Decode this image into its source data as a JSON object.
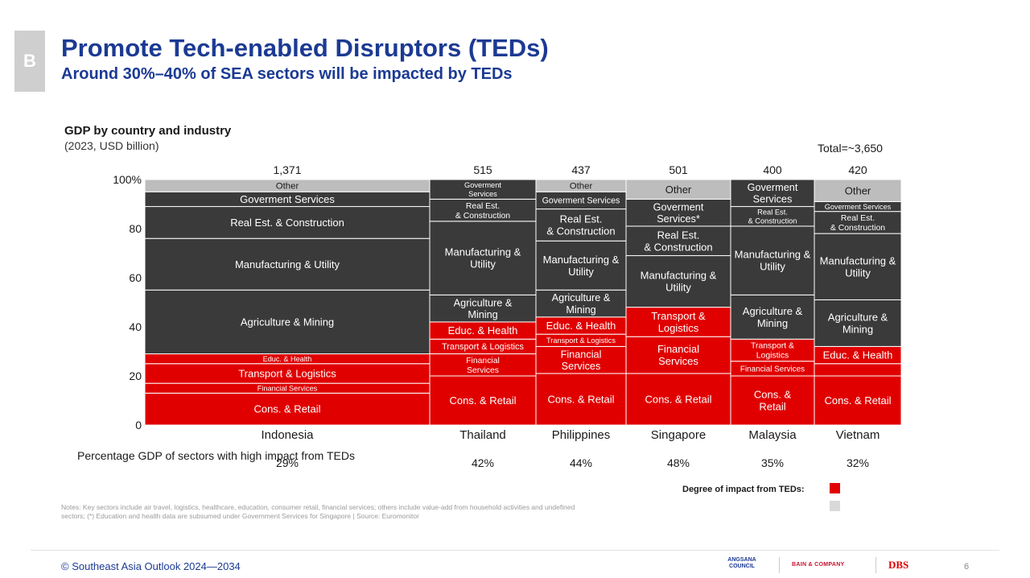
{
  "section": "B",
  "title": "Promote Tech-enabled Disruptors (TEDs)",
  "subtitle": "Around 30%–40% of SEA sectors will be impacted by TEDs",
  "total_label": "Total=~3,650",
  "pct_row_label": "Percentage GDP of sectors with high impact from TEDs",
  "legend": {
    "label": "Degree of impact from TEDs:",
    "high_color": "#e00000",
    "low_color": "#d9d9d9"
  },
  "notes": "Notes: Key sectors include air travel, logistics, healthcare, education, consumer retail, financial services; others include value-add from household activities and undefined sectors; (*) Education and health data are subsumed under Government Services for Singapore | Source: Euromonitor",
  "footer": {
    "copyright": "© Southeast Asia Outlook 2024—2034",
    "page": "6"
  },
  "logos": {
    "angsana": "ANGSANA COUNCIL",
    "bain": "BAIN & COMPANY",
    "dbs": "DBS"
  },
  "chart_data": {
    "type": "bar",
    "title": "GDP by country and industry",
    "subtitle": "(2023, USD billion)",
    "ylim": [
      0,
      100
    ],
    "yticks": [
      "0",
      "20",
      "40",
      "60",
      "80",
      "100%"
    ],
    "colors": {
      "high": "#e00000",
      "low": "#3a3a3a",
      "other": "#bdbdbd"
    },
    "countries": [
      {
        "name": "Indonesia",
        "total": "1,371",
        "pct": "29%",
        "segments": [
          {
            "label": "Cons. & Retail",
            "value": 13,
            "impact": "high"
          },
          {
            "label": "Financial Services",
            "value": 4,
            "impact": "high"
          },
          {
            "label": "Transport & Logistics",
            "value": 8,
            "impact": "high"
          },
          {
            "label": "Educ. & Health",
            "value": 4,
            "impact": "high"
          },
          {
            "label": "Agriculture & Mining",
            "value": 26,
            "impact": "low"
          },
          {
            "label": "Manufacturing & Utility",
            "value": 21,
            "impact": "low"
          },
          {
            "label": "Real Est. & Construction",
            "value": 13,
            "impact": "low"
          },
          {
            "label": "Goverment Services",
            "value": 6,
            "impact": "low"
          },
          {
            "label": "Other",
            "value": 5,
            "impact": "other"
          }
        ]
      },
      {
        "name": "Thailand",
        "total": "515",
        "pct": "42%",
        "segments": [
          {
            "label": "Cons. & Retail",
            "value": 20,
            "impact": "high"
          },
          {
            "label": "Financial Services",
            "value": 9,
            "impact": "high"
          },
          {
            "label": "Transport & Logistics",
            "value": 6,
            "impact": "high"
          },
          {
            "label": "Educ. & Health",
            "value": 7,
            "impact": "high"
          },
          {
            "label": "Agriculture & Mining",
            "value": 11,
            "impact": "low"
          },
          {
            "label": "Manufacturing & Utility",
            "value": 30,
            "impact": "low"
          },
          {
            "label": "Real Est. & Construction",
            "value": 9,
            "impact": "low"
          },
          {
            "label": "Goverment Services",
            "value": 8,
            "impact": "low"
          }
        ]
      },
      {
        "name": "Philippines",
        "total": "437",
        "pct": "44%",
        "segments": [
          {
            "label": "Cons. & Retail",
            "value": 21,
            "impact": "high"
          },
          {
            "label": "Financial Services",
            "value": 11,
            "impact": "high"
          },
          {
            "label": "Transport & Logistics",
            "value": 5,
            "impact": "high"
          },
          {
            "label": "Educ. & Health",
            "value": 7,
            "impact": "high"
          },
          {
            "label": "Agriculture & Mining",
            "value": 11,
            "impact": "low"
          },
          {
            "label": "Manufacturing & Utility",
            "value": 20,
            "impact": "low"
          },
          {
            "label": "Real Est. & Construction",
            "value": 13,
            "impact": "low"
          },
          {
            "label": "Goverment Services",
            "value": 7,
            "impact": "low"
          },
          {
            "label": "Other",
            "value": 5,
            "impact": "other"
          }
        ]
      },
      {
        "name": "Singapore",
        "total": "501",
        "pct": "48%",
        "segments": [
          {
            "label": "Cons. & Retail",
            "value": 21,
            "impact": "high"
          },
          {
            "label": "Financial Services",
            "value": 15,
            "impact": "high"
          },
          {
            "label": "Transport & Logistics",
            "value": 12,
            "impact": "high"
          },
          {
            "label": "Manufacturing & Utility",
            "value": 21,
            "impact": "low"
          },
          {
            "label": "Real Est. & Construction",
            "value": 12,
            "impact": "low"
          },
          {
            "label": "Goverment Services*",
            "value": 11,
            "impact": "low"
          },
          {
            "label": "Other",
            "value": 8,
            "impact": "other"
          }
        ]
      },
      {
        "name": "Malaysia",
        "total": "400",
        "pct": "35%",
        "segments": [
          {
            "label": "Cons. & Retail",
            "value": 20,
            "impact": "high"
          },
          {
            "label": "Financial Services",
            "value": 6,
            "impact": "high"
          },
          {
            "label": "Transport & Logistics",
            "value": 9,
            "impact": "high"
          },
          {
            "label": "Agriculture & Mining",
            "value": 18,
            "impact": "low"
          },
          {
            "label": "Manufacturing & Utility",
            "value": 28,
            "impact": "low"
          },
          {
            "label": "Real Est. & Construction",
            "value": 8,
            "impact": "low"
          },
          {
            "label": "Goverment Services",
            "value": 11,
            "impact": "low"
          }
        ]
      },
      {
        "name": "Vietnam",
        "total": "420",
        "pct": "32%",
        "segments": [
          {
            "label": "Cons. & Retail",
            "value": 20,
            "impact": "high"
          },
          {
            "label": "",
            "value": 5,
            "impact": "high"
          },
          {
            "label": "Educ. & Health",
            "value": 7,
            "impact": "high"
          },
          {
            "label": "Agriculture & Mining",
            "value": 19,
            "impact": "low"
          },
          {
            "label": "Manufacturing & Utility",
            "value": 27,
            "impact": "low"
          },
          {
            "label": "Real Est. & Construction",
            "value": 9,
            "impact": "low"
          },
          {
            "label": "Goverment Services",
            "value": 4,
            "impact": "low"
          },
          {
            "label": "Other",
            "value": 9,
            "impact": "other"
          }
        ]
      }
    ]
  }
}
